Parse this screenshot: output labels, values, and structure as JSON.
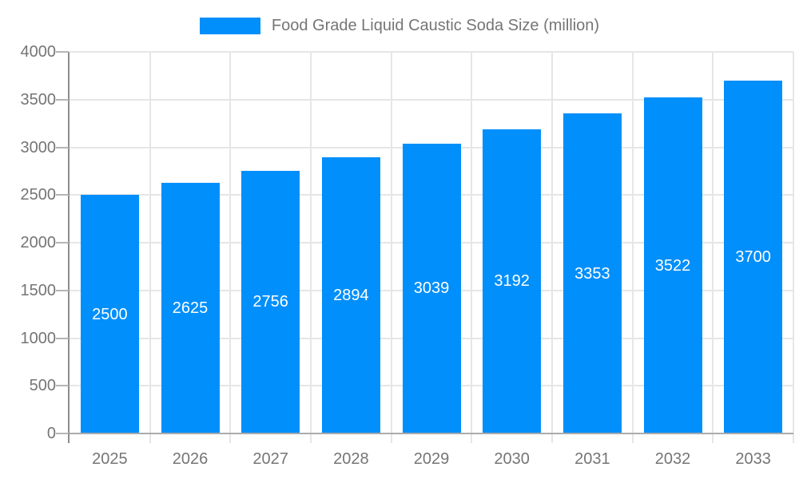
{
  "page": {
    "background_color": "#ffffff"
  },
  "legend": {
    "label": "Food Grade Liquid Caustic Soda Size (million)",
    "swatch_color": "#008FFB",
    "position": "top"
  },
  "chart_data": {
    "type": "bar",
    "title": "Food Grade Liquid Caustic Soda Size (million)",
    "categories": [
      "2025",
      "2026",
      "2027",
      "2028",
      "2029",
      "2030",
      "2031",
      "2032",
      "2033"
    ],
    "series": [
      {
        "name": "Food Grade Liquid Caustic Soda Size (million)",
        "values": [
          2500,
          2625,
          2756,
          2894,
          3039,
          3192,
          3353,
          3522,
          3700
        ]
      }
    ],
    "value_labels": [
      "2500",
      "2625",
      "2756",
      "2894",
      "3039",
      "3192",
      "3353",
      "3522",
      "3700"
    ],
    "xlabel": "",
    "ylabel": "",
    "ylim": [
      0,
      4000
    ],
    "y_ticks": [
      0,
      500,
      1000,
      1500,
      2000,
      2500,
      3000,
      3500,
      4000
    ],
    "grid": true,
    "legend_position": "top",
    "bar_color": "#008FFB",
    "value_label_color": "#ffffff",
    "grid_color": "#e6e6e6",
    "axis_line_color": "#8c8c8c",
    "tick_label_color": "#757575"
  }
}
